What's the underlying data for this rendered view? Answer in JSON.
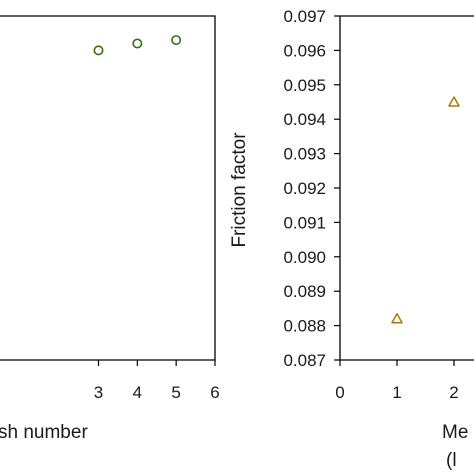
{
  "chart_data": [
    {
      "type": "scatter",
      "xlabel_visible": "sh number",
      "x_ticks": [
        "3",
        "4",
        "5",
        "6"
      ],
      "xlim": [
        0,
        6
      ],
      "marker": "circle",
      "marker_color": "#3a6e10",
      "grid": false,
      "series": [
        {
          "x": [
            3,
            4,
            5
          ],
          "y": [
            0.096,
            0.0962,
            0.0963
          ]
        }
      ]
    },
    {
      "type": "scatter",
      "ylabel": "Friction factor",
      "xlabel_visible": "Me",
      "xlabel_visible_line2": "(l",
      "y_ticks": [
        "0.097",
        "0.096",
        "0.095",
        "0.094",
        "0.093",
        "0.092",
        "0.091",
        "0.090",
        "0.089",
        "0.088",
        "0.087"
      ],
      "ylim": [
        0.087,
        0.097
      ],
      "x_ticks": [
        "0",
        "1",
        "2"
      ],
      "xlim": [
        0,
        6
      ],
      "marker": "triangle",
      "marker_color": "#a07a10",
      "grid": false,
      "series": [
        {
          "x": [
            1,
            2
          ],
          "y": [
            0.0882,
            0.0945
          ]
        }
      ]
    }
  ]
}
